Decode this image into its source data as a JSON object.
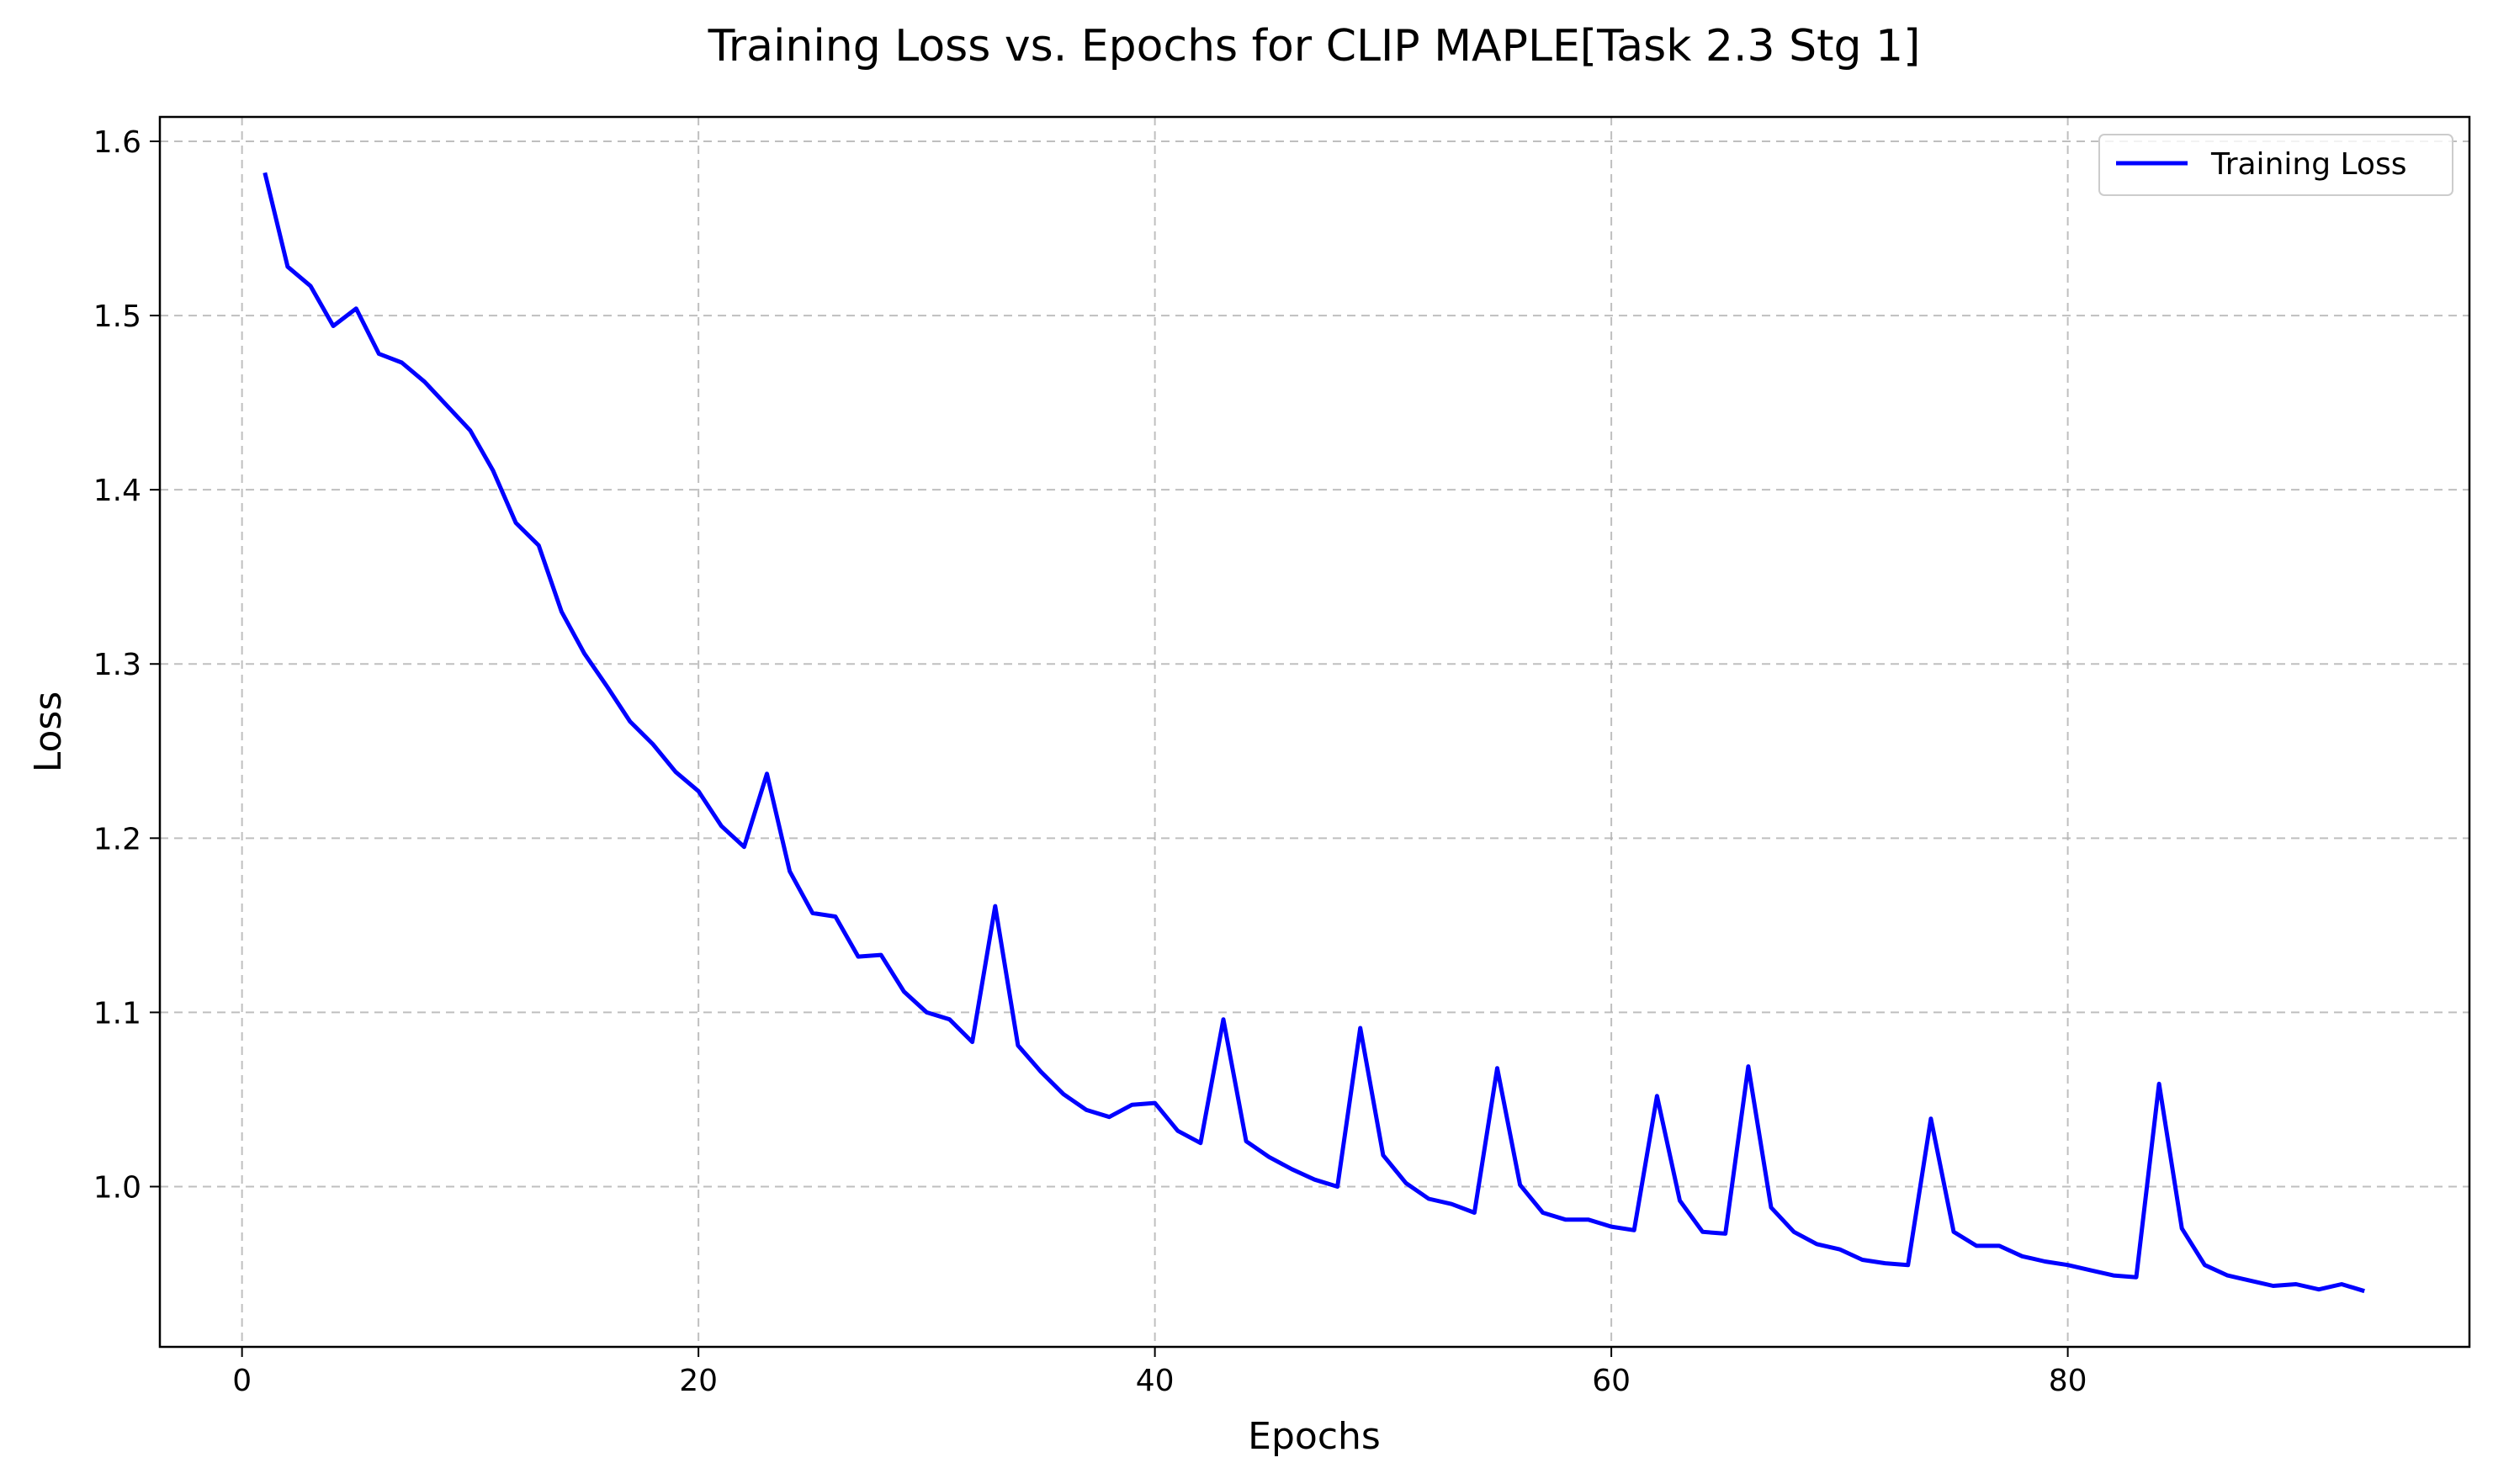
{
  "chart_data": {
    "type": "line",
    "title": "Training Loss vs. Epochs for CLIP MAPLE[Task 2.3 Stg 1]",
    "xlabel": "Epochs",
    "ylabel": "Loss",
    "xlim": [
      -3.6,
      97.6
    ],
    "ylim": [
      0.908,
      1.614
    ],
    "xticks": [
      0,
      20,
      40,
      60,
      80
    ],
    "yticks": [
      1.0,
      1.1,
      1.2,
      1.3,
      1.4,
      1.5,
      1.6
    ],
    "xtick_labels": [
      "0",
      "20",
      "40",
      "60",
      "80"
    ],
    "ytick_labels": [
      "1.0",
      "1.1",
      "1.2",
      "1.3",
      "1.4",
      "1.5",
      "1.6"
    ],
    "grid": true,
    "legend": {
      "position": "top-right",
      "entries": [
        "Training Loss"
      ]
    },
    "series": [
      {
        "name": "Training Loss",
        "color": "#0000ff",
        "x": [
          1,
          2,
          3,
          4,
          5,
          6,
          7,
          8,
          9,
          10,
          11,
          12,
          13,
          14,
          15,
          16,
          17,
          18,
          19,
          20,
          21,
          22,
          23,
          24,
          25,
          26,
          27,
          28,
          29,
          30,
          31,
          32,
          33,
          34,
          35,
          36,
          37,
          38,
          39,
          40,
          41,
          42,
          43,
          44,
          45,
          46,
          47,
          48,
          49,
          50,
          51,
          52,
          53,
          54,
          55,
          56,
          57,
          58,
          59,
          60,
          61,
          62,
          63,
          64,
          65,
          66,
          67,
          68,
          69,
          70,
          71,
          72,
          73,
          74,
          75,
          76,
          77,
          78,
          79,
          80,
          81,
          82,
          83,
          84,
          85,
          86,
          87,
          88,
          89,
          90,
          91,
          92,
          93
        ],
        "values": [
          1.582,
          1.528,
          1.517,
          1.494,
          1.504,
          1.478,
          1.473,
          1.462,
          1.448,
          1.434,
          1.411,
          1.381,
          1.368,
          1.33,
          1.306,
          1.287,
          1.267,
          1.254,
          1.238,
          1.227,
          1.207,
          1.195,
          1.237,
          1.181,
          1.157,
          1.155,
          1.132,
          1.133,
          1.112,
          1.1,
          1.096,
          1.083,
          1.161,
          1.081,
          1.066,
          1.053,
          1.044,
          1.04,
          1.047,
          1.048,
          1.032,
          1.025,
          1.096,
          1.026,
          1.017,
          1.01,
          1.004,
          1.0,
          1.091,
          1.018,
          1.002,
          0.993,
          0.99,
          0.985,
          1.068,
          1.001,
          0.985,
          0.981,
          0.981,
          0.977,
          0.975,
          1.052,
          0.992,
          0.974,
          0.973,
          1.069,
          0.988,
          0.974,
          0.967,
          0.964,
          0.958,
          0.956,
          0.955,
          1.039,
          0.974,
          0.966,
          0.966,
          0.96,
          0.957,
          0.955,
          0.952,
          0.949,
          0.948,
          1.059,
          0.976,
          0.955,
          0.949,
          0.946,
          0.943,
          0.944,
          0.941,
          0.944,
          0.94
        ]
      }
    ]
  }
}
